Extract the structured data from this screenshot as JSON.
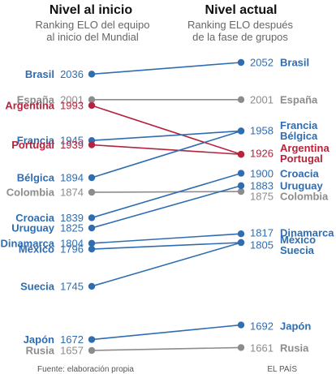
{
  "titles": {
    "left_heading": "Nivel al inicio",
    "left_sub1": "Ranking ELO del equipo",
    "left_sub2": "al inicio del Mundial",
    "right_heading": "Nivel actual",
    "right_sub1": "Ranking ELO después",
    "right_sub2": "de la fase de grupos"
  },
  "footer": {
    "source": "Fuente: elaboración propia",
    "credit": "EL PAÍS"
  },
  "colors": {
    "blue": "#2f6db0",
    "grey": "#8c8c8c",
    "red": "#b5233d",
    "title": "#111111"
  },
  "chart_data": {
    "type": "slope",
    "series": [
      {
        "name": "Brasil",
        "start": 2036,
        "end": 2052,
        "color": "blue"
      },
      {
        "name": "España",
        "start": 2001,
        "end": 2001,
        "color": "grey"
      },
      {
        "name": "Argentina",
        "start": 1993,
        "end": 1926,
        "color": "red"
      },
      {
        "name": "Francia",
        "start": 1945,
        "end": 1958,
        "color": "blue"
      },
      {
        "name": "Portugal",
        "start": 1939,
        "end": 1926,
        "color": "red"
      },
      {
        "name": "Bélgica",
        "start": 1894,
        "end": 1958,
        "color": "blue"
      },
      {
        "name": "Colombia",
        "start": 1874,
        "end": 1875,
        "color": "grey"
      },
      {
        "name": "Croacia",
        "start": 1839,
        "end": 1900,
        "color": "blue"
      },
      {
        "name": "Uruguay",
        "start": 1825,
        "end": 1883,
        "color": "blue"
      },
      {
        "name": "Dinamarca",
        "start": 1804,
        "end": 1817,
        "color": "blue"
      },
      {
        "name": "México",
        "start": 1796,
        "end": 1805,
        "color": "blue"
      },
      {
        "name": "Suecia",
        "start": 1745,
        "end": 1805,
        "color": "blue"
      },
      {
        "name": "Japón",
        "start": 1672,
        "end": 1692,
        "color": "blue"
      },
      {
        "name": "Rusia",
        "start": 1657,
        "end": 1661,
        "color": "grey"
      }
    ],
    "left_labels": [
      {
        "countries": [
          "Brasil"
        ],
        "value": "2036",
        "color": "blue"
      },
      {
        "countries": [
          "España"
        ],
        "value": "2001",
        "color": "grey"
      },
      {
        "countries": [
          "Argentina"
        ],
        "value": "1993",
        "color": "red"
      },
      {
        "countries": [
          "Francia"
        ],
        "value": "1945",
        "color": "blue"
      },
      {
        "countries": [
          "Portugal"
        ],
        "value": "1939",
        "color": "red"
      },
      {
        "countries": [
          "Bélgica"
        ],
        "value": "1894",
        "color": "blue"
      },
      {
        "countries": [
          "Colombia"
        ],
        "value": "1874",
        "color": "grey"
      },
      {
        "countries": [
          "Croacia"
        ],
        "value": "1839",
        "color": "blue"
      },
      {
        "countries": [
          "Uruguay"
        ],
        "value": "1825",
        "color": "blue"
      },
      {
        "countries": [
          "Dinamarca"
        ],
        "value": "1804",
        "color": "blue"
      },
      {
        "countries": [
          "México"
        ],
        "value": "1796",
        "color": "blue"
      },
      {
        "countries": [
          "Suecia"
        ],
        "value": "1745",
        "color": "blue"
      },
      {
        "countries": [
          "Japón"
        ],
        "value": "1672",
        "color": "blue"
      },
      {
        "countries": [
          "Rusia"
        ],
        "value": "1657",
        "color": "grey"
      }
    ],
    "right_labels": [
      {
        "value": "2052",
        "countries": [
          "Brasil"
        ],
        "color": "blue"
      },
      {
        "value": "2001",
        "countries": [
          "España"
        ],
        "color": "grey"
      },
      {
        "value": "1958",
        "countries": [
          "Francia",
          "Bélgica"
        ],
        "color": "blue"
      },
      {
        "value": "1926",
        "countries": [
          "Argentina",
          "Portugal"
        ],
        "color": "red"
      },
      {
        "value": "1900",
        "countries": [
          "Croacia"
        ],
        "color": "blue"
      },
      {
        "value": "1883",
        "countries": [
          "Uruguay"
        ],
        "color": "blue"
      },
      {
        "value": "1875",
        "countries": [
          "Colombia"
        ],
        "color": "grey"
      },
      {
        "value": "1817",
        "countries": [
          "Dinamarca"
        ],
        "color": "blue"
      },
      {
        "value": "1805",
        "countries": [
          "México",
          "Suecia"
        ],
        "color": "blue"
      },
      {
        "value": "1692",
        "countries": [
          "Japón"
        ],
        "color": "blue"
      },
      {
        "value": "1661",
        "countries": [
          "Rusia"
        ],
        "color": "grey"
      }
    ]
  }
}
